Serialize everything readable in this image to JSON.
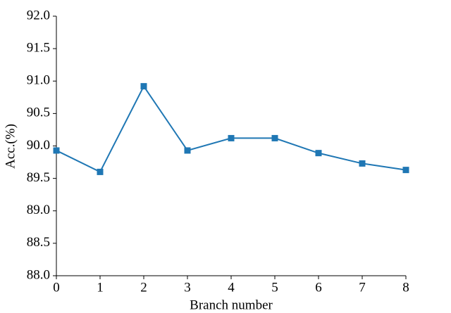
{
  "chart_data": {
    "type": "line",
    "x_label": "Branch number",
    "y_label": "Acc.(%)",
    "x": [
      0,
      1,
      2,
      3,
      4,
      5,
      6,
      7,
      8
    ],
    "series": [
      {
        "color": "#1f77b4",
        "values": [
          89.93,
          89.6,
          90.92,
          89.93,
          90.12,
          90.12,
          89.89,
          89.73,
          89.63
        ]
      }
    ],
    "xlim": [
      0,
      8
    ],
    "xticks": [
      0,
      1,
      2,
      3,
      4,
      5,
      6,
      7,
      8
    ],
    "ylim": [
      88,
      92
    ],
    "yticks": [
      {
        "value": 88,
        "label": "88.0"
      },
      88.5,
      {
        "value": 89,
        "label": "89.0"
      },
      89.5,
      {
        "value": 90,
        "label": "90.0"
      },
      90.5,
      {
        "value": 91,
        "label": "91.0"
      },
      91.5,
      {
        "value": 92,
        "label": "92.0"
      }
    ],
    "marker": "square",
    "grid": false
  }
}
